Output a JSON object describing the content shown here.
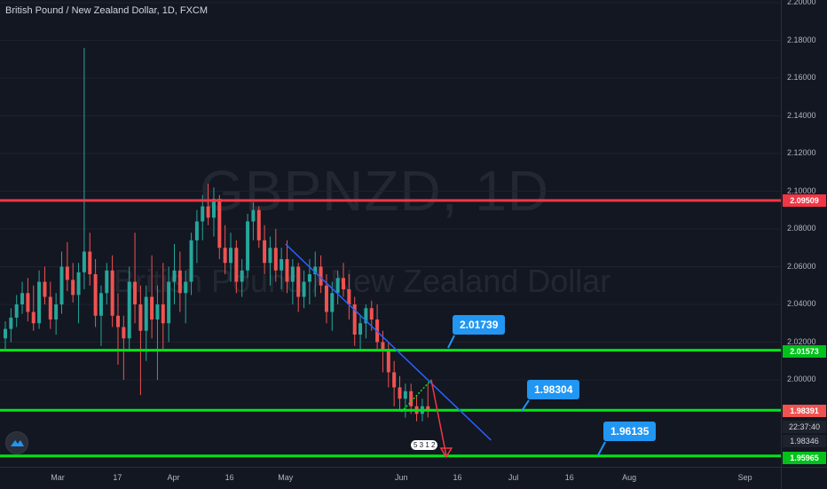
{
  "header": {
    "symbol_title": "British Pound / New Zealand Dollar, 1D, FXCM"
  },
  "watermark": {
    "main": "GBPNZD, 1D",
    "sub": "British Pound / New Zealand Dollar"
  },
  "colors": {
    "background": "#131722",
    "candle_up": "#26a69a",
    "candle_down": "#ef5350",
    "resistance_line": "#f23645",
    "support_line": "#00e61a",
    "trendline": "#2962ff",
    "callout": "#2196f3"
  },
  "chart_data": {
    "type": "candlestick",
    "symbol": "GBPNZD",
    "interval": "1D",
    "ylim": [
      1.955,
      2.2
    ],
    "y_ticks": [
      "2.20000",
      "2.18000",
      "2.16000",
      "2.14000",
      "2.12000",
      "2.10000",
      "2.08000",
      "2.06000",
      "2.04000",
      "2.02000",
      "2.00000"
    ],
    "x_ticks": [
      "Mar",
      "17",
      "Apr",
      "16",
      "May",
      "Jun",
      "16",
      "Jul",
      "16",
      "Aug",
      "Sep"
    ],
    "price_badges": [
      {
        "value": "2.09509",
        "color": "#f23645"
      },
      {
        "value": "2.01573",
        "color": "#00c21a"
      },
      {
        "value": "1.98391",
        "color": "#ef5350"
      },
      {
        "value": "22:37:40",
        "color": "#1e222d"
      },
      {
        "value": "1.98346",
        "color": "#1e222d"
      },
      {
        "value": "1.95965",
        "color": "#00c21a"
      }
    ],
    "horizontal_levels": [
      {
        "value": 2.09509,
        "color": "#f23645"
      },
      {
        "value": 2.01573,
        "color": "#00e61a"
      },
      {
        "value": 1.98391,
        "color": "#00e61a"
      },
      {
        "value": 1.95965,
        "color": "#00e61a"
      }
    ],
    "callouts": [
      {
        "label": "2.01739"
      },
      {
        "label": "1.98304"
      },
      {
        "label": "1.96135"
      }
    ],
    "trendline": {
      "from": {
        "date": "2020-05-01",
        "value": 2.072
      },
      "to": {
        "date": "2020-06-25",
        "value": 1.968
      }
    },
    "projection": {
      "path": [
        {
          "date": "2020-06-01",
          "value": 1.983
        },
        {
          "date": "2020-06-09",
          "value": 2.0
        },
        {
          "date": "2020-06-13",
          "value": 1.96
        }
      ]
    },
    "candles": [
      [
        2.022,
        2.031,
        2.016,
        2.027
      ],
      [
        2.027,
        2.038,
        2.02,
        2.033
      ],
      [
        2.033,
        2.045,
        2.028,
        2.04
      ],
      [
        2.04,
        2.052,
        2.035,
        2.046
      ],
      [
        2.046,
        2.054,
        2.031,
        2.036
      ],
      [
        2.036,
        2.05,
        2.026,
        2.03
      ],
      [
        2.03,
        2.058,
        2.027,
        2.052
      ],
      [
        2.052,
        2.06,
        2.04,
        2.044
      ],
      [
        2.044,
        2.052,
        2.027,
        2.032
      ],
      [
        2.032,
        2.046,
        2.024,
        2.04
      ],
      [
        2.04,
        2.068,
        2.035,
        2.06
      ],
      [
        2.06,
        2.073,
        2.047,
        2.053
      ],
      [
        2.053,
        2.062,
        2.041,
        2.045
      ],
      [
        2.045,
        2.062,
        2.03,
        2.057
      ],
      [
        2.057,
        2.176,
        2.048,
        2.068
      ],
      [
        2.068,
        2.078,
        2.05,
        2.056
      ],
      [
        2.056,
        2.064,
        2.028,
        2.034
      ],
      [
        2.034,
        2.05,
        2.018,
        2.046
      ],
      [
        2.046,
        2.062,
        2.04,
        2.058
      ],
      [
        2.058,
        2.066,
        2.028,
        2.034
      ],
      [
        2.034,
        2.046,
        2.008,
        2.028
      ],
      [
        2.028,
        2.034,
        2.0,
        2.022
      ],
      [
        2.022,
        2.06,
        2.016,
        2.052
      ],
      [
        2.052,
        2.078,
        2.03,
        2.04
      ],
      [
        2.04,
        2.05,
        1.992,
        2.026
      ],
      [
        2.026,
        2.05,
        2.01,
        2.044
      ],
      [
        2.044,
        2.066,
        2.022,
        2.032
      ],
      [
        2.032,
        2.05,
        2.0,
        2.04
      ],
      [
        2.04,
        2.062,
        2.016,
        2.03
      ],
      [
        2.03,
        2.06,
        2.02,
        2.052
      ],
      [
        2.052,
        2.072,
        2.04,
        2.058
      ],
      [
        2.058,
        2.068,
        2.036,
        2.046
      ],
      [
        2.046,
        2.058,
        2.03,
        2.052
      ],
      [
        2.052,
        2.078,
        2.045,
        2.074
      ],
      [
        2.074,
        2.09,
        2.062,
        2.084
      ],
      [
        2.084,
        2.098,
        2.074,
        2.092
      ],
      [
        2.092,
        2.104,
        2.082,
        2.086
      ],
      [
        2.086,
        2.102,
        2.076,
        2.096
      ],
      [
        2.096,
        2.098,
        2.064,
        2.07
      ],
      [
        2.07,
        2.082,
        2.056,
        2.062
      ],
      [
        2.062,
        2.078,
        2.052,
        2.07
      ],
      [
        2.07,
        2.074,
        2.046,
        2.052
      ],
      [
        2.052,
        2.064,
        2.044,
        2.058
      ],
      [
        2.058,
        2.088,
        2.054,
        2.084
      ],
      [
        2.084,
        2.094,
        2.074,
        2.09
      ],
      [
        2.09,
        2.092,
        2.07,
        2.074
      ],
      [
        2.074,
        2.082,
        2.056,
        2.062
      ],
      [
        2.062,
        2.076,
        2.05,
        2.07
      ],
      [
        2.07,
        2.08,
        2.052,
        2.058
      ],
      [
        2.058,
        2.07,
        2.048,
        2.064
      ],
      [
        2.064,
        2.074,
        2.046,
        2.052
      ],
      [
        2.052,
        2.064,
        2.04,
        2.06
      ],
      [
        2.06,
        2.062,
        2.036,
        2.044
      ],
      [
        2.044,
        2.058,
        2.038,
        2.052
      ],
      [
        2.052,
        2.064,
        2.04,
        2.056
      ],
      [
        2.056,
        2.068,
        2.044,
        2.06
      ],
      [
        2.06,
        2.066,
        2.046,
        2.05
      ],
      [
        2.05,
        2.056,
        2.03,
        2.036
      ],
      [
        2.036,
        2.052,
        2.026,
        2.046
      ],
      [
        2.046,
        2.058,
        2.04,
        2.054
      ],
      [
        2.054,
        2.062,
        2.044,
        2.048
      ],
      [
        2.048,
        2.056,
        2.032,
        2.04
      ],
      [
        2.04,
        2.044,
        2.018,
        2.024
      ],
      [
        2.024,
        2.034,
        2.016,
        2.03
      ],
      [
        2.03,
        2.04,
        2.022,
        2.038
      ],
      [
        2.038,
        2.042,
        2.026,
        2.032
      ],
      [
        2.032,
        2.04,
        2.016,
        2.02
      ],
      [
        2.02,
        2.026,
        2.004,
        2.016
      ],
      [
        2.016,
        2.02,
        1.996,
        2.004
      ],
      [
        2.004,
        2.01,
        1.986,
        1.996
      ],
      [
        1.996,
        2.002,
        1.984,
        1.99
      ],
      [
        1.99,
        1.998,
        1.98,
        1.994
      ],
      [
        1.994,
        1.998,
        1.982,
        1.986
      ],
      [
        1.986,
        1.992,
        1.978,
        1.982
      ],
      [
        1.982,
        1.99,
        1.978,
        1.986
      ],
      [
        1.986,
        1.998,
        1.98,
        1.984
      ]
    ]
  },
  "badges": {
    "bar_count": "5 3 1 2"
  }
}
